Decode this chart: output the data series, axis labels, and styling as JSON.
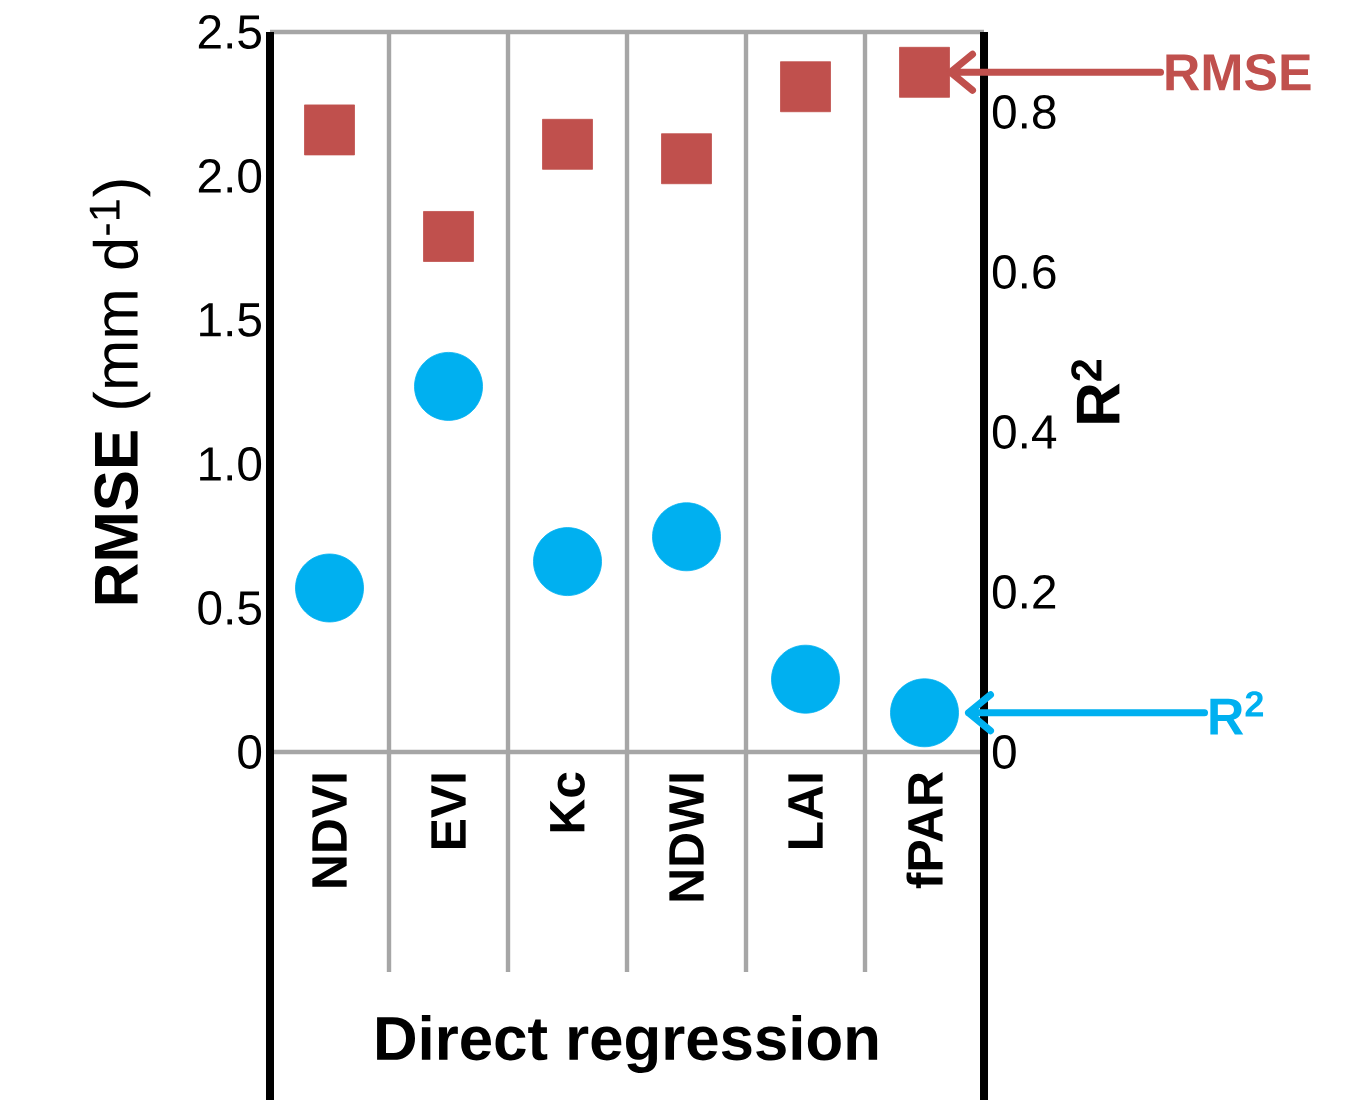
{
  "chart_data": {
    "type": "scatter",
    "xlabel": "Direct regression",
    "ylabel": "**RMSE** (mm d$^{-1}$)",
    "y2label": "R$^{2}$",
    "categories": [
      "NDVI",
      "EVI",
      "Kc",
      "NDWI",
      "LAI",
      "fPAR"
    ],
    "series": [
      {
        "name": "RMSE",
        "color": "#c0504d",
        "marker": "square",
        "values": [
          2.16,
          1.79,
          2.11,
          2.06,
          2.31,
          2.36
        ]
      },
      {
        "name": "R$^{2}$",
        "color": "#00b0f0",
        "marker": "circle",
        "axis": "y2",
        "values": [
          0.205,
          0.457,
          0.238,
          0.269,
          0.091,
          0.049
        ]
      }
    ],
    "ylim": [
      0,
      2.5
    ],
    "yticks": [
      0,
      {
        "value": 0.5,
        "label": "0.5"
      },
      {
        "value": 1,
        "label": "1.0"
      },
      {
        "value": 1.5,
        "label": "1.5"
      },
      {
        "value": 2,
        "label": "2.0"
      },
      {
        "value": 2.5,
        "label": "2.5"
      }
    ],
    "y2lim": [
      0,
      0.9
    ],
    "y2ticks": [
      0,
      0.2,
      0.4,
      0.6,
      0.8
    ],
    "grid": "x",
    "legend": "right"
  }
}
